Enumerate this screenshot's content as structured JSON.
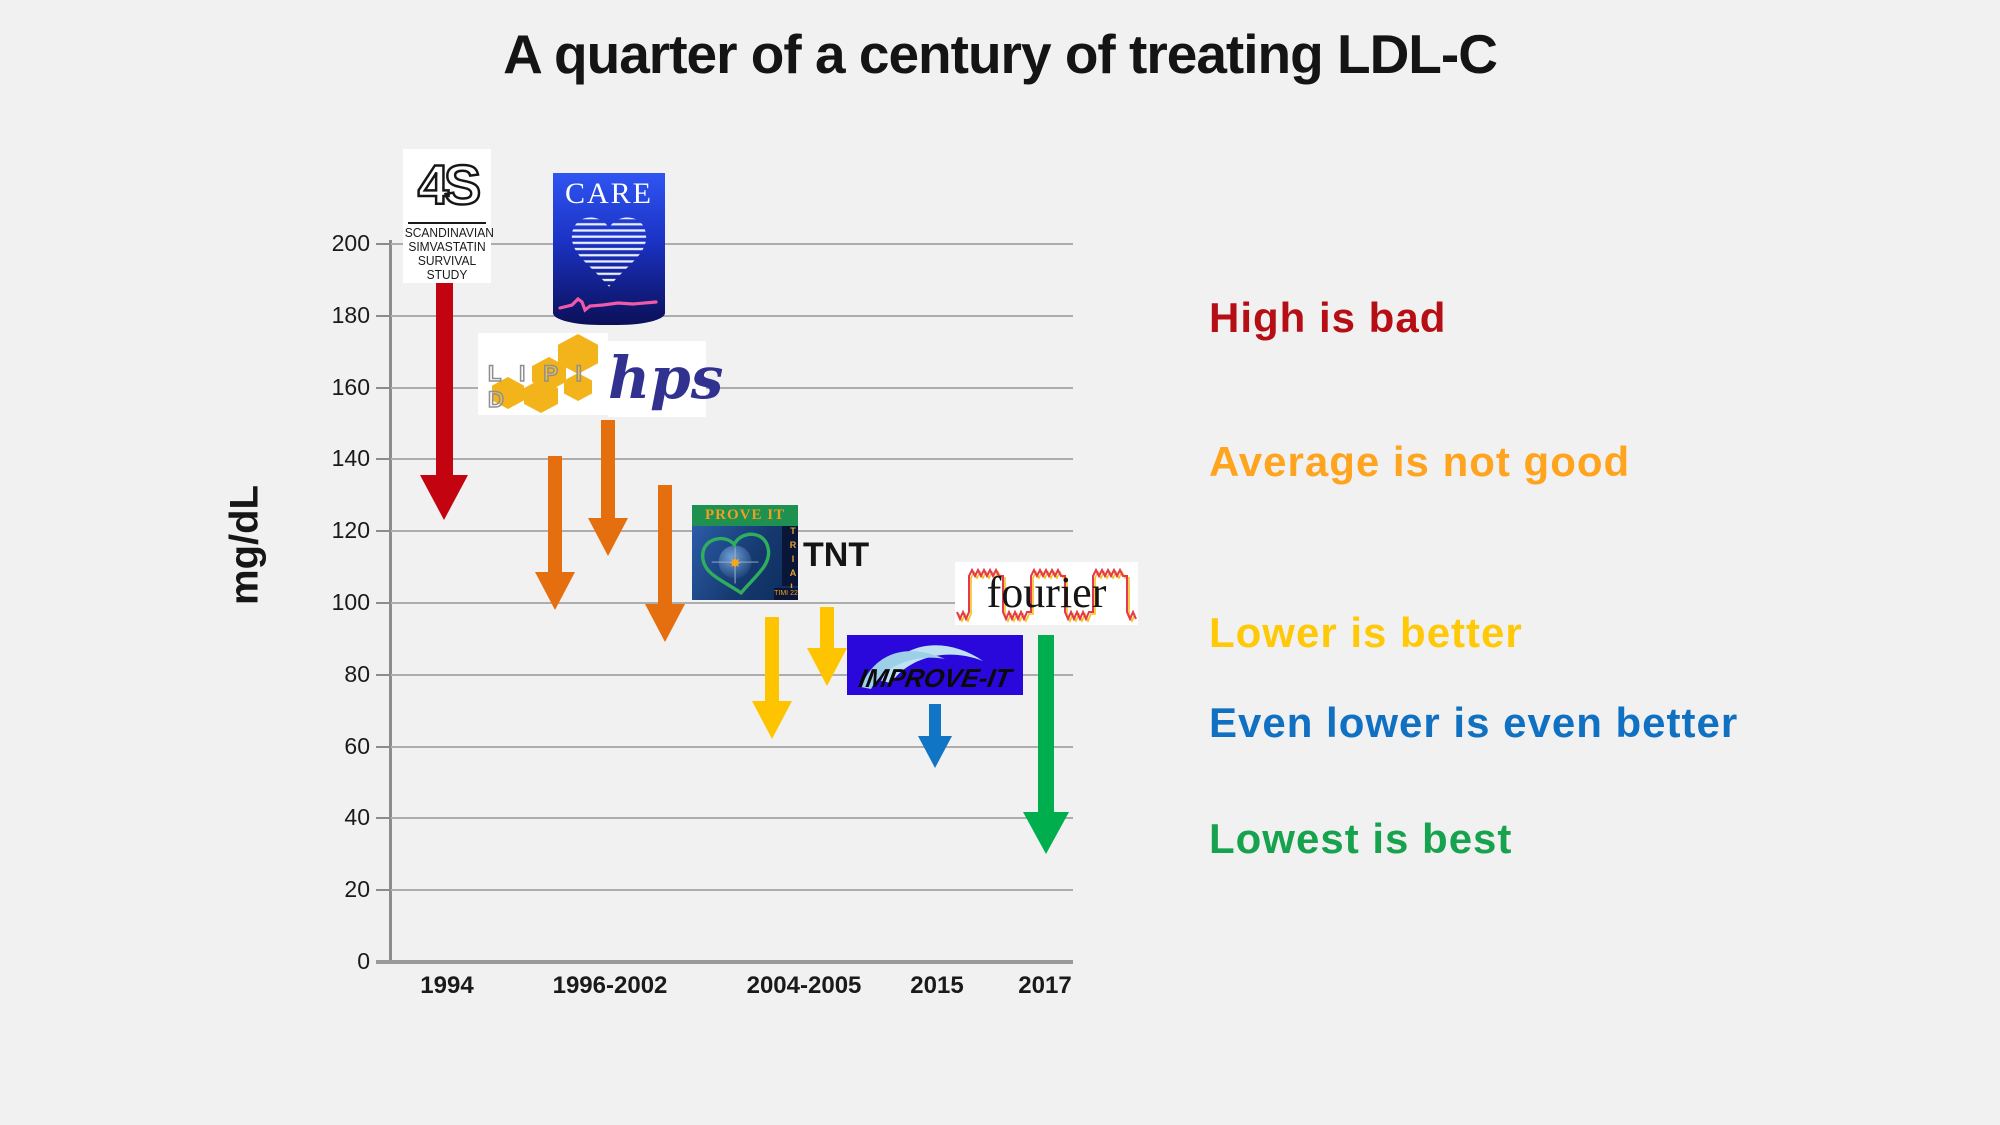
{
  "slide_title": "A quarter of a century of treating LDL-C",
  "y_axis": {
    "title": "mg/dL"
  },
  "annotations": [
    {
      "text": "High is bad",
      "color": "#b50e15"
    },
    {
      "text": "Average is not good",
      "color": "#ffa41e"
    },
    {
      "text": "Lower is better",
      "color": "#ffc907"
    },
    {
      "text": "Even lower is even better",
      "color": "#1070c2"
    },
    {
      "text": "Lowest is best",
      "color": "#17a24d"
    }
  ],
  "logos": {
    "s4": {
      "symbol": "4S",
      "lines": [
        "SCANDINAVIAN",
        "SIMVASTATIN",
        "SURVIVAL STUDY"
      ]
    },
    "care": {
      "text": "CARE"
    },
    "lipid": {
      "letters": "L I P I D"
    },
    "hps": {
      "text": "hps"
    },
    "prove_it": {
      "title": "PROVE IT",
      "side": "TRIAL",
      "footnote": "TIMI 22"
    },
    "tnt": {
      "text": "TNT"
    },
    "improve_it": {
      "text": "IMPROVE-IT"
    },
    "fourier": {
      "text": "fourier"
    }
  },
  "chart_data": {
    "type": "arrow-drop",
    "title": "A quarter of a century of treating LDL-C",
    "ylabel": "mg/dL",
    "ylim": [
      0,
      200
    ],
    "ytick_step": 20,
    "grid": true,
    "legend": false,
    "x_categories": [
      "1994",
      "1996-2002",
      "2004-2005",
      "2015",
      "2017"
    ],
    "arrows": [
      {
        "trial": "4S",
        "period": "1994",
        "from": 189,
        "to": 123,
        "color": "#c40310",
        "x": 444
      },
      {
        "trial": "CARE",
        "period": "1996-2002",
        "from": 141,
        "to": 98,
        "color": "#e56f0e",
        "x": 555
      },
      {
        "trial": "LIPID",
        "period": "1996-2002",
        "from": 151,
        "to": 113,
        "color": "#e56f0e",
        "x": 608
      },
      {
        "trial": "HPS",
        "period": "1996-2002",
        "from": 133,
        "to": 89,
        "color": "#e56f0e",
        "x": 665
      },
      {
        "trial": "PROVE IT",
        "period": "2004-2005",
        "from": 96,
        "to": 62,
        "color": "#ffc400",
        "x": 772
      },
      {
        "trial": "TNT",
        "period": "2004-2005",
        "from": 99,
        "to": 77,
        "color": "#ffc400",
        "x": 827
      },
      {
        "trial": "IMPROVE-IT",
        "period": "2015",
        "from": 72,
        "to": 54,
        "color": "#1075c5",
        "x": 935
      },
      {
        "trial": "FOURIER",
        "period": "2017",
        "from": 91,
        "to": 30,
        "color": "#00ae4d",
        "x": 1046
      }
    ]
  }
}
